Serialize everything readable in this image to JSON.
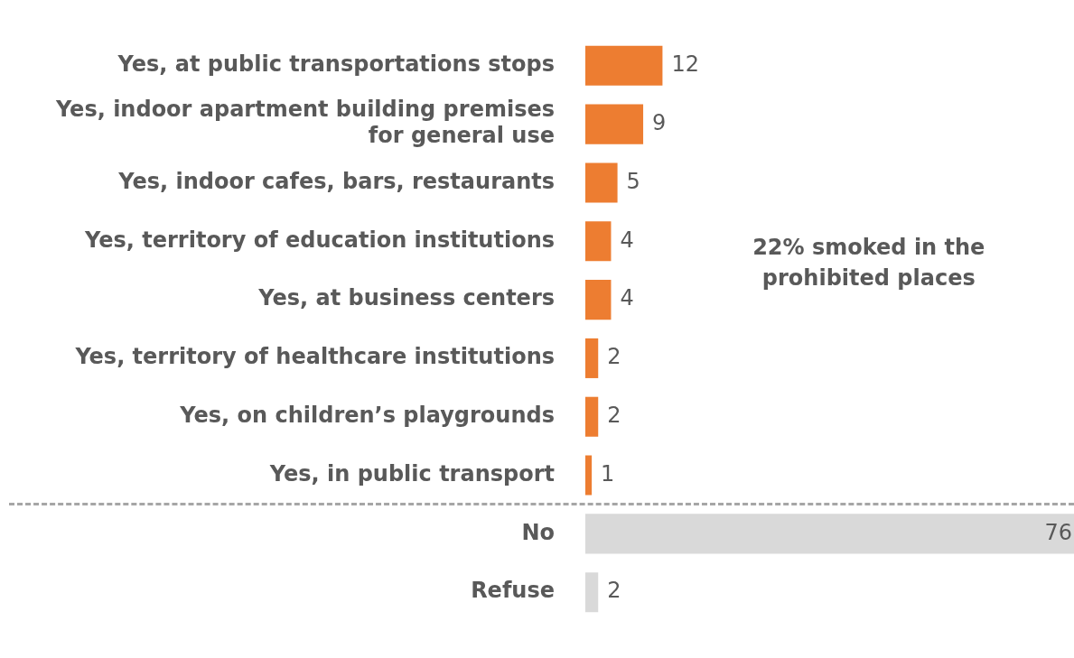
{
  "chart_data": {
    "type": "bar",
    "orientation": "horizontal",
    "categories": [
      "Yes, at public transportations stops",
      "Yes, indoor apartment building premises for general use",
      "Yes, indoor cafes, bars, restaurants",
      "Yes, territory of education institutions",
      "Yes, at business centers",
      "Yes, territory of healthcare institutions",
      "Yes, on children’s playgrounds",
      "Yes, in public transport",
      "No",
      "Refuse"
    ],
    "values": [
      12,
      9,
      5,
      4,
      4,
      2,
      2,
      1,
      76,
      2
    ],
    "colors": [
      "#ed7d31",
      "#ed7d31",
      "#ed7d31",
      "#ed7d31",
      "#ed7d31",
      "#ed7d31",
      "#ed7d31",
      "#ed7d31",
      "#d9d9d9",
      "#d9d9d9"
    ],
    "data_labels": true,
    "grid": false,
    "legend": false,
    "annotations": [
      "22% smoked in the prohibited places"
    ]
  }
}
